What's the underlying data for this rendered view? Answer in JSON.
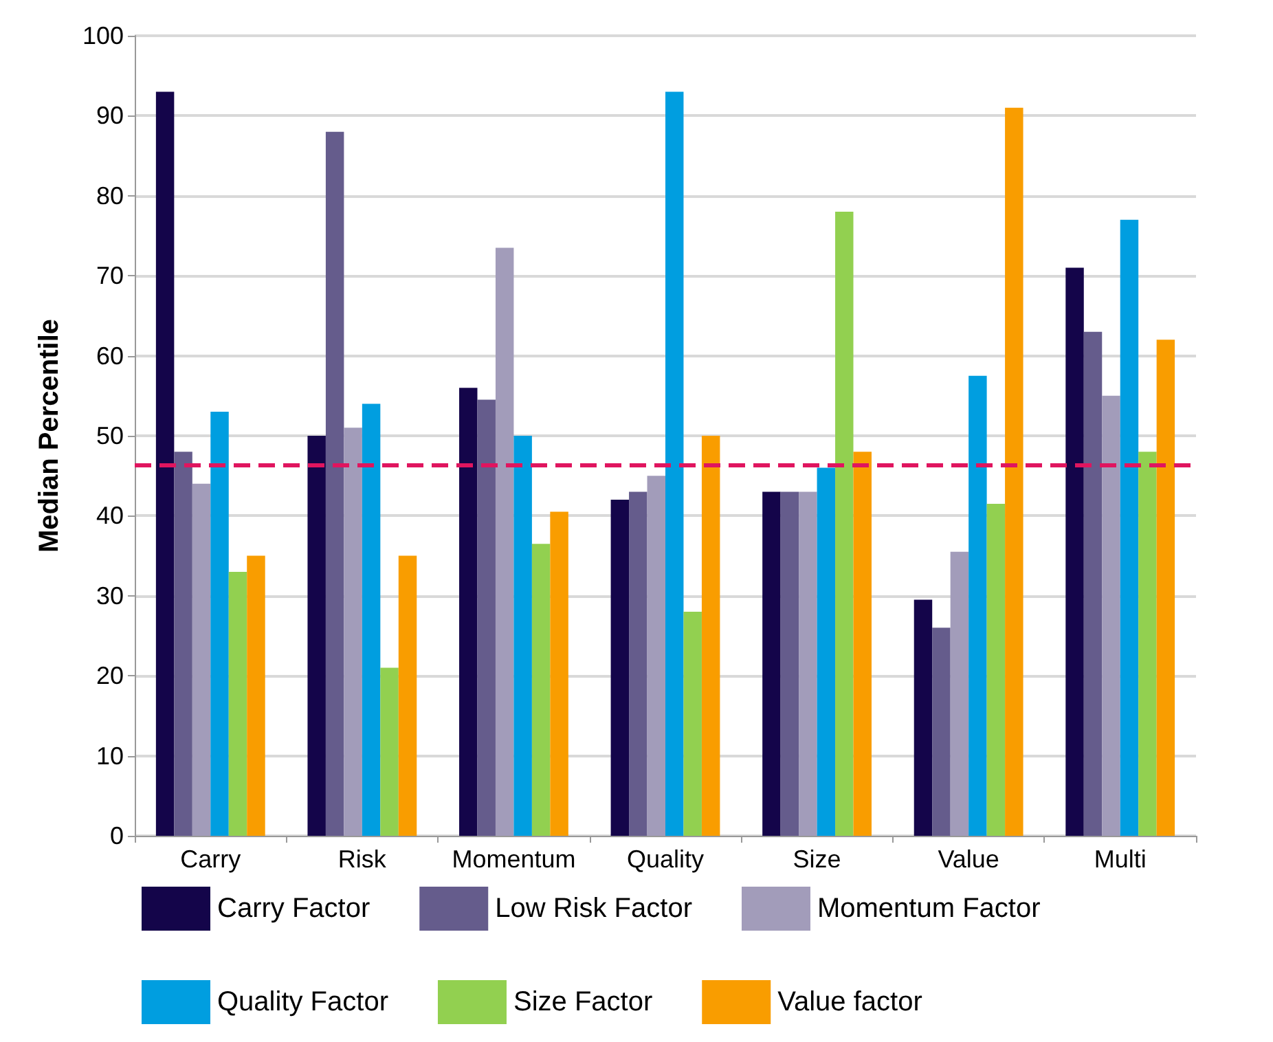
{
  "chart_data": {
    "type": "bar",
    "ylabel": "Median Percentile",
    "categories": [
      "Carry",
      "Risk",
      "Momentum",
      "Quality",
      "Size",
      "Value",
      "Multi"
    ],
    "series": [
      {
        "name": "Carry Factor",
        "color": "#14054a",
        "values": [
          93,
          50,
          56,
          42,
          43,
          29.5,
          71
        ]
      },
      {
        "name": "Low Risk Factor",
        "color": "#655c8c",
        "values": [
          48,
          88,
          54.5,
          43,
          43,
          26,
          63
        ]
      },
      {
        "name": "Momentum Factor",
        "color": "#a29cba",
        "values": [
          44,
          51,
          73.5,
          45,
          43,
          35.5,
          55
        ]
      },
      {
        "name": "Quality Factor",
        "color": "#009ee0",
        "values": [
          53,
          54,
          50,
          93,
          46,
          57.5,
          77
        ]
      },
      {
        "name": "Size Factor",
        "color": "#92d050",
        "values": [
          33,
          21,
          36.5,
          28,
          78,
          41.5,
          48
        ]
      },
      {
        "name": "Value factor",
        "color": "#f99d00",
        "values": [
          35,
          35,
          40.5,
          50,
          48,
          91,
          62
        ]
      }
    ],
    "ylim": [
      0,
      100
    ],
    "yticks": [
      0,
      10,
      20,
      30,
      40,
      50,
      60,
      70,
      80,
      90,
      100
    ],
    "grid": "y",
    "legend": "bottom",
    "ref_lines": [
      {
        "axis": "y",
        "value": 46.3,
        "color": "#e0155f",
        "line_style": "dashed"
      }
    ]
  }
}
